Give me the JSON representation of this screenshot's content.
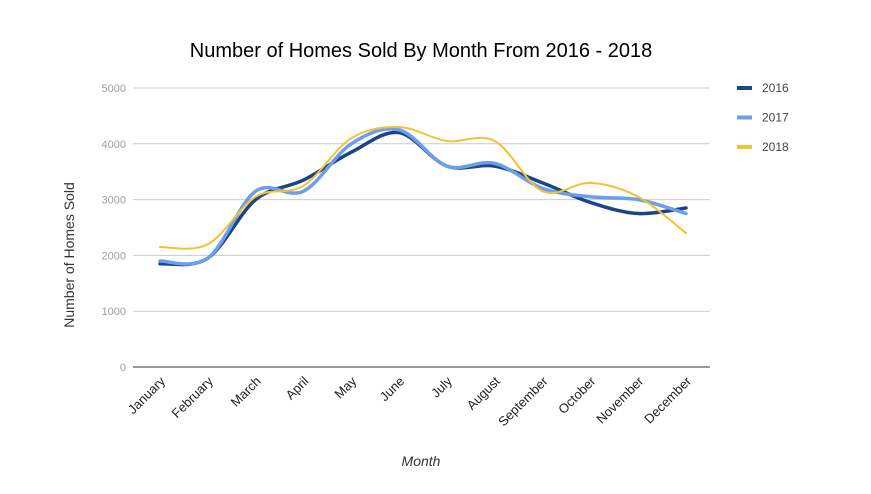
{
  "chart_data": {
    "type": "line",
    "title": "Number of Homes Sold By Month From 2016 - 2018",
    "xlabel": "Month",
    "ylabel": "Number of Homes Sold",
    "ylim": [
      0,
      5000
    ],
    "yticks": [
      "0",
      "1000",
      "2000",
      "3000",
      "4000",
      "5000"
    ],
    "categories": [
      "January",
      "February",
      "March",
      "April",
      "May",
      "June",
      "July",
      "August",
      "September",
      "October",
      "November",
      "December"
    ],
    "grid": true,
    "legend_position": "right",
    "smooth": true,
    "series": [
      {
        "name": "2016",
        "color": "#1c4587",
        "values": [
          1850,
          1950,
          3000,
          3350,
          3850,
          4200,
          3600,
          3600,
          3300,
          2950,
          2750,
          2850
        ]
      },
      {
        "name": "2017",
        "color": "#6d9eeb",
        "values": [
          1900,
          1950,
          3150,
          3150,
          4000,
          4250,
          3600,
          3650,
          3200,
          3050,
          3000,
          2750
        ]
      },
      {
        "name": "2018",
        "color": "#f1c232",
        "values": [
          2150,
          2200,
          3050,
          3250,
          4100,
          4300,
          4050,
          4050,
          3150,
          3300,
          3050,
          2400
        ]
      }
    ]
  }
}
